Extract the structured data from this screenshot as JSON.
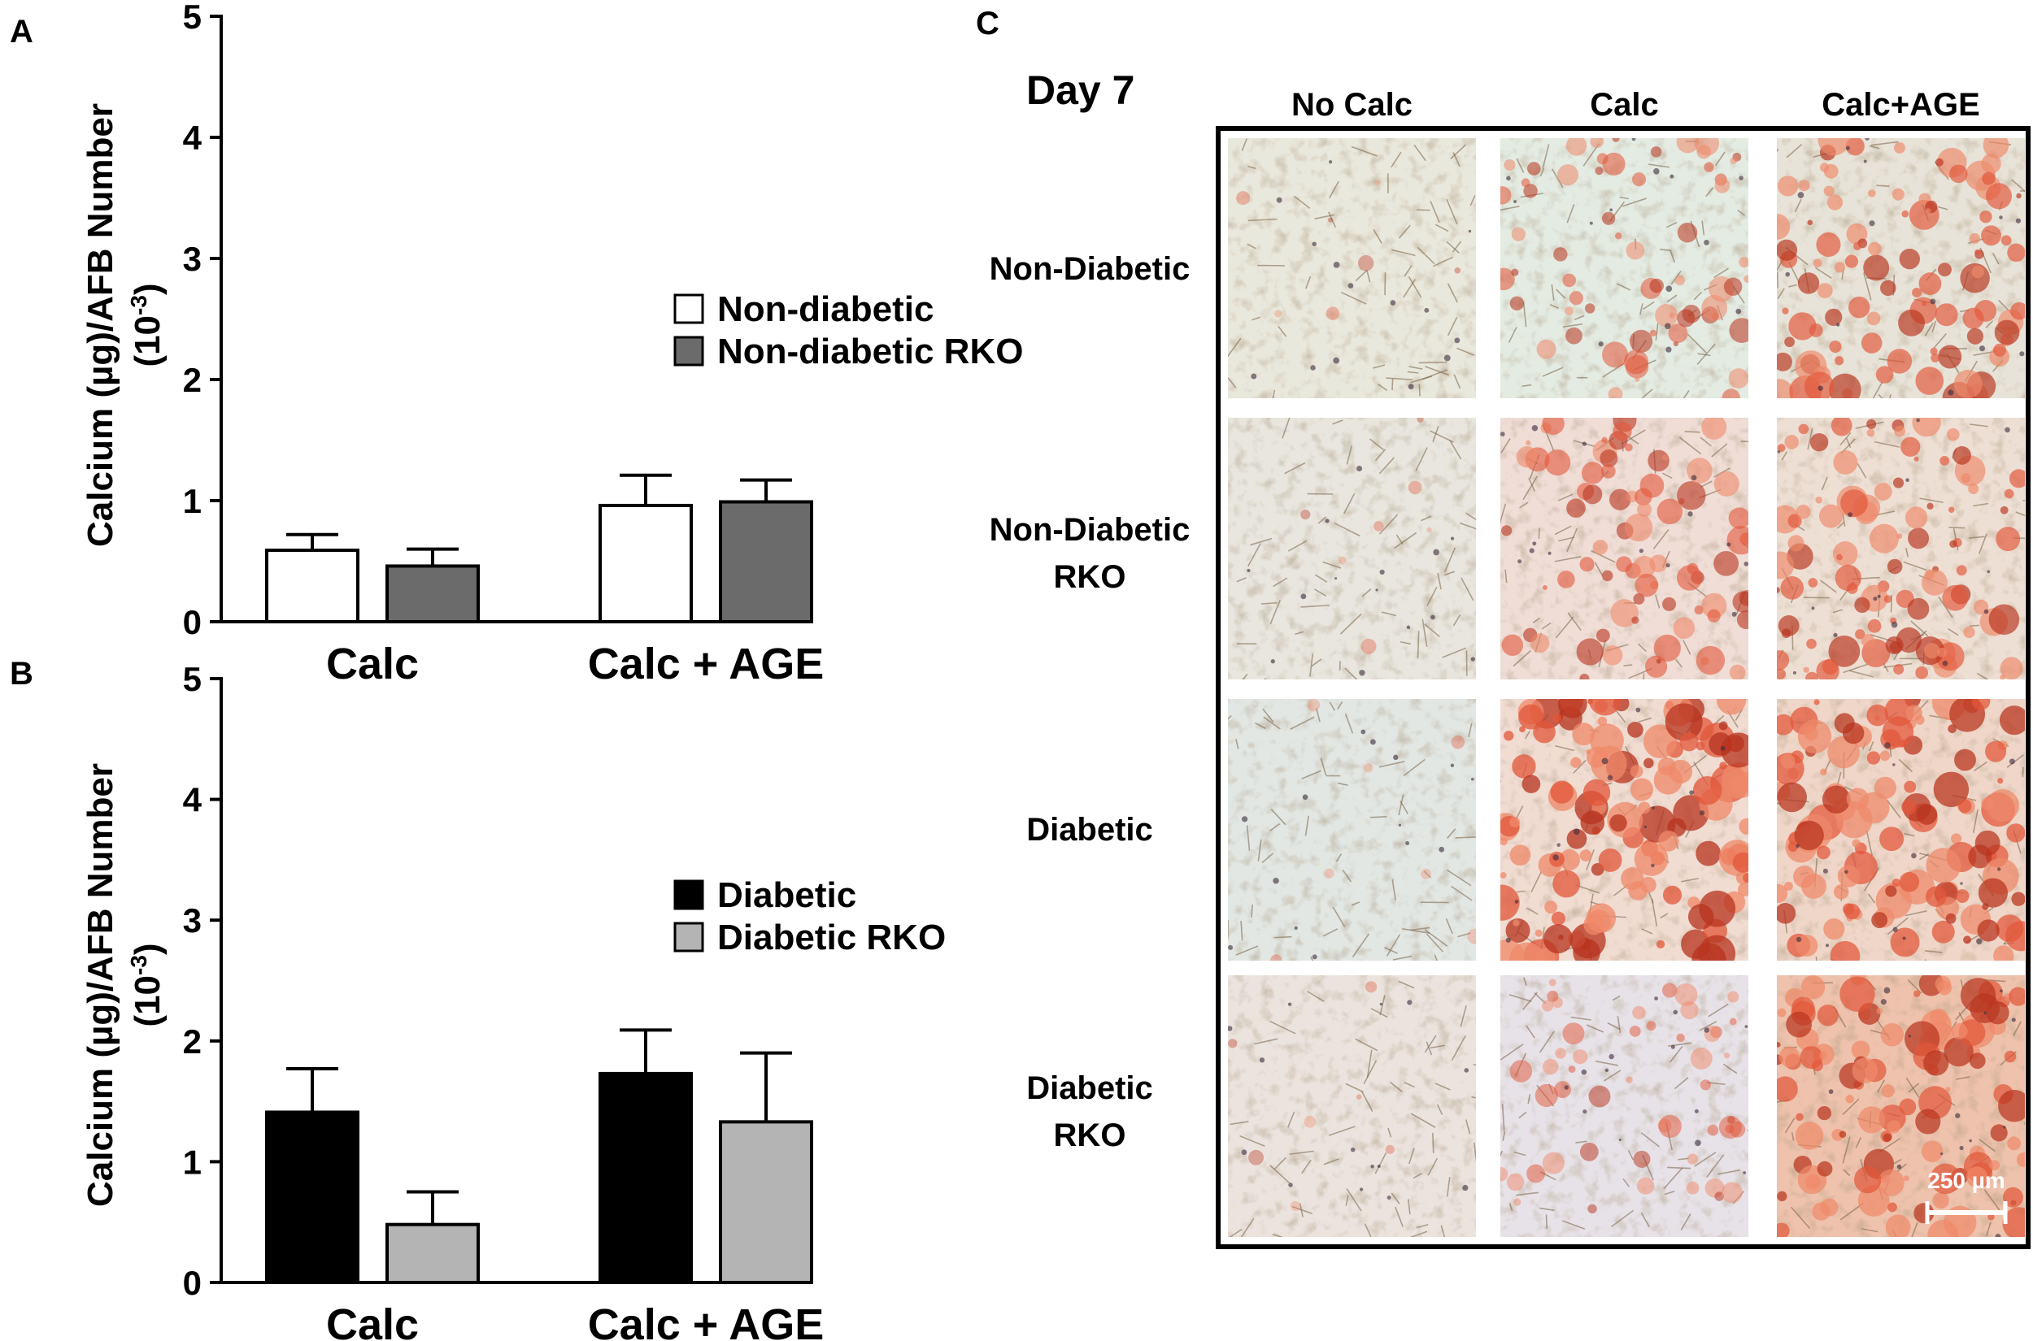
{
  "panels": {
    "a": "A",
    "b": "B",
    "c": "C"
  },
  "chart_data": [
    {
      "type": "bar",
      "panel": "A",
      "categories": [
        "Calc",
        "Calc + AGE"
      ],
      "series": [
        {
          "name": "Non-diabetic",
          "values": [
            0.59,
            0.96
          ],
          "errors": [
            0.13,
            0.25
          ],
          "color": "#ffffff"
        },
        {
          "name": "Non-diabetic RKO",
          "values": [
            0.46,
            0.99
          ],
          "errors": [
            0.14,
            0.18
          ],
          "color": "#6b6b6b"
        }
      ],
      "ylabel_line1": "Calcium (µg)/AFB Number",
      "ylabel_line2": "(10",
      "ylabel_sup": "-3",
      "ylabel_line2_end": ")",
      "ylim": [
        0,
        5
      ],
      "yticks": [
        "0",
        "1",
        "2",
        "3",
        "4",
        "5"
      ],
      "legend_position": "right"
    },
    {
      "type": "bar",
      "panel": "B",
      "categories": [
        "Calc",
        "Calc + AGE"
      ],
      "series": [
        {
          "name": "Diabetic",
          "values": [
            1.41,
            1.73
          ],
          "errors": [
            0.36,
            0.36
          ],
          "color": "#000000"
        },
        {
          "name": "Diabetic RKO",
          "values": [
            0.48,
            1.33
          ],
          "errors": [
            0.27,
            0.57
          ],
          "color": "#b4b4b4"
        }
      ],
      "ylabel_line1": "Calcium (µg)/AFB Number",
      "ylabel_line2": "(10",
      "ylabel_sup": "-3",
      "ylabel_line2_end": ")",
      "ylim": [
        0,
        5
      ],
      "yticks": [
        "0",
        "1",
        "2",
        "3",
        "4",
        "5"
      ],
      "legend_position": "right"
    }
  ],
  "micrographs": {
    "day_label": "Day 7",
    "columns": [
      "No Calc",
      "Calc",
      "Calc+AGE"
    ],
    "rows": [
      {
        "line1": "Non-Diabetic",
        "line2": ""
      },
      {
        "line1": "Non-Diabetic",
        "line2": "RKO"
      },
      {
        "line1": "Diabetic",
        "line2": ""
      },
      {
        "line1": "Diabetic",
        "line2": "RKO"
      }
    ],
    "stain_levels": [
      [
        0.05,
        0.45,
        0.7
      ],
      [
        0.05,
        0.55,
        0.7
      ],
      [
        0.05,
        0.9,
        0.85
      ],
      [
        0.05,
        0.35,
        0.8
      ]
    ],
    "base_colors": [
      [
        "#e9e8dc",
        "#e4ebe2",
        "#e8e3d8"
      ],
      [
        "#e8e6de",
        "#f0ddd6",
        "#eedfd4"
      ],
      [
        "#e2e7e4",
        "#f1dcd2",
        "#efd6c8"
      ],
      [
        "#ebe4de",
        "#e7e2e8",
        "#eec2ac"
      ]
    ],
    "scale_bar_label": "250 µm"
  }
}
